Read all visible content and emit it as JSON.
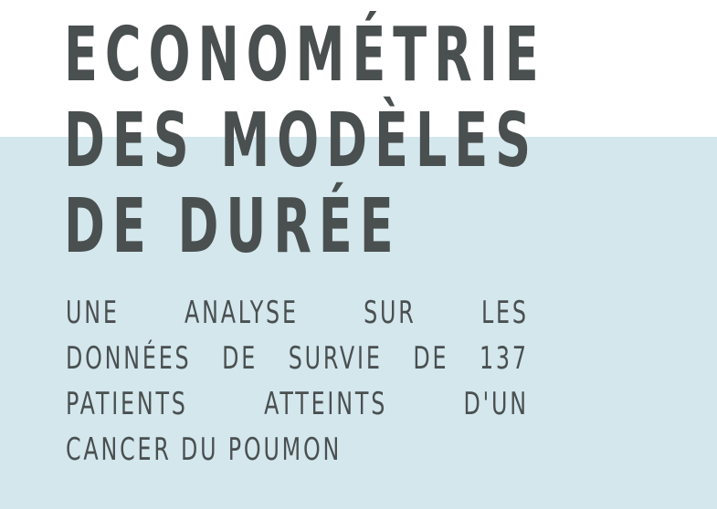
{
  "colors": {
    "panel_background": "#d3e7ed",
    "top_background": "#ffffff",
    "text": "#4a4f50"
  },
  "title": {
    "lines": [
      "ECONOMÉTRIE",
      "DES MODÈLES",
      "DE DURÉE"
    ]
  },
  "subtitle": {
    "lines": [
      "UNE ANALYSE SUR LES",
      "DONNÉES DE SURVIE DE 137",
      "PATIENTS ATTEINTS D'UN",
      "CANCER DU POUMON"
    ]
  }
}
